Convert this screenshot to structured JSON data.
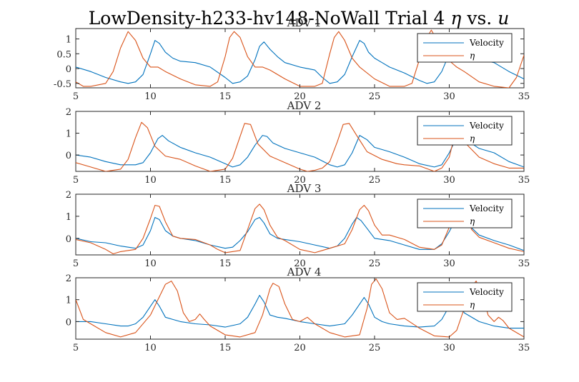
{
  "figure": {
    "title_parts": [
      "LowDensity-h233-hv148-NoWall Trial 4 ",
      "η",
      " vs. ",
      "u"
    ]
  },
  "chart_data": [
    {
      "type": "line",
      "title": "ADV 1",
      "xlim": [
        5,
        35
      ],
      "ylim": [
        -0.65,
        1.35
      ],
      "xticks": [
        5,
        10,
        15,
        20,
        25,
        30,
        35
      ],
      "xticklabels": [
        "5",
        "10",
        "15",
        "20",
        "25",
        "30",
        "35"
      ],
      "yticks": [
        -0.5,
        0,
        0.5,
        1
      ],
      "yticklabels": [
        "-0.5",
        "0",
        "0.5",
        "1"
      ],
      "grid": false,
      "legend_position": "top-right",
      "series": [
        {
          "name": "Velocity",
          "color": "#0072BD",
          "x": [
            5,
            6,
            7,
            8,
            8.5,
            9,
            9.5,
            10,
            10.3,
            10.6,
            11,
            11.5,
            12,
            13,
            14,
            15,
            15.5,
            16,
            16.5,
            17,
            17.3,
            17.6,
            18,
            18.5,
            19,
            20,
            21,
            21.5,
            22,
            22.5,
            23,
            23.5,
            24,
            24.3,
            24.6,
            25,
            25.5,
            26,
            27,
            28,
            28.5,
            29,
            29.5,
            30,
            30.5,
            31,
            32,
            33,
            34,
            35
          ],
          "y": [
            0.05,
            -0.1,
            -0.3,
            -0.45,
            -0.5,
            -0.45,
            -0.2,
            0.5,
            0.95,
            0.85,
            0.55,
            0.35,
            0.25,
            0.2,
            0.05,
            -0.3,
            -0.5,
            -0.45,
            -0.25,
            0.3,
            0.75,
            0.9,
            0.65,
            0.4,
            0.2,
            0.05,
            -0.05,
            -0.3,
            -0.5,
            -0.45,
            -0.2,
            0.4,
            0.95,
            0.85,
            0.55,
            0.35,
            0.2,
            0.05,
            -0.15,
            -0.4,
            -0.5,
            -0.45,
            -0.1,
            0.5,
            0.85,
            0.6,
            0.3,
            0.2,
            -0.1,
            -0.35
          ]
        },
        {
          "name": "η",
          "color": "#D95319",
          "x": [
            5,
            5.5,
            6,
            7,
            7.5,
            8,
            8.5,
            9,
            9.5,
            10,
            10.5,
            11,
            12,
            13,
            14,
            14.5,
            15,
            15.3,
            15.6,
            16,
            16.5,
            17,
            17.5,
            18,
            19,
            20,
            21,
            21.5,
            22,
            22.3,
            22.6,
            23,
            23.5,
            24,
            25,
            26,
            27,
            27.5,
            28,
            28.5,
            28.8,
            29.2,
            29.8,
            30.5,
            31,
            32,
            33,
            34,
            34.5,
            35
          ],
          "y": [
            -0.45,
            -0.6,
            -0.6,
            -0.5,
            -0.1,
            0.7,
            1.25,
            0.95,
            0.35,
            0.05,
            0.05,
            -0.1,
            -0.35,
            -0.55,
            -0.6,
            -0.45,
            0.4,
            1.05,
            1.25,
            1.05,
            0.4,
            0.05,
            0.05,
            -0.05,
            -0.35,
            -0.6,
            -0.6,
            -0.5,
            0.5,
            1.05,
            1.25,
            0.95,
            0.35,
            0.05,
            -0.35,
            -0.6,
            -0.6,
            -0.5,
            0.3,
            1.05,
            1.3,
            0.95,
            0.35,
            0.05,
            -0.1,
            -0.45,
            -0.6,
            -0.65,
            -0.3,
            0.45
          ]
        }
      ]
    },
    {
      "type": "line",
      "title": "ADV 2",
      "xlim": [
        5,
        35
      ],
      "ylim": [
        -0.75,
        2
      ],
      "xticks": [
        5,
        10,
        15,
        20,
        25,
        30,
        35
      ],
      "xticklabels": [
        "5",
        "10",
        "15",
        "20",
        "25",
        "30",
        "35"
      ],
      "yticks": [
        0,
        1,
        2
      ],
      "yticklabels": [
        "0",
        "1",
        "2"
      ],
      "grid": false,
      "legend_position": "top-right",
      "series": [
        {
          "name": "Velocity",
          "color": "#0072BD",
          "x": [
            5,
            6,
            7,
            8,
            9,
            9.5,
            10,
            10.5,
            10.8,
            11.2,
            12,
            13,
            14,
            15,
            15.5,
            16,
            16.5,
            17,
            17.5,
            17.8,
            18.2,
            19,
            20,
            21,
            22,
            22.5,
            23,
            23.5,
            24,
            24.5,
            25,
            26,
            27,
            28,
            29,
            29.5,
            30,
            30.5,
            31,
            32,
            33,
            34,
            35
          ],
          "y": [
            0,
            -0.1,
            -0.3,
            -0.45,
            -0.45,
            -0.35,
            0.1,
            0.75,
            0.9,
            0.65,
            0.35,
            0.1,
            -0.1,
            -0.4,
            -0.55,
            -0.45,
            -0.1,
            0.45,
            0.9,
            0.85,
            0.55,
            0.3,
            0.1,
            -0.1,
            -0.45,
            -0.55,
            -0.45,
            0.1,
            0.9,
            0.7,
            0.35,
            0.15,
            -0.1,
            -0.4,
            -0.55,
            -0.45,
            0.1,
            0.8,
            0.75,
            0.3,
            0.1,
            -0.3,
            -0.55
          ]
        },
        {
          "name": "η",
          "color": "#D95319",
          "x": [
            5,
            6,
            7,
            8,
            8.5,
            9,
            9.4,
            9.8,
            10.3,
            11,
            12,
            13,
            14,
            15,
            15.5,
            16,
            16.3,
            16.7,
            17.2,
            18,
            19,
            20,
            20.5,
            21,
            21.5,
            22,
            22.5,
            22.9,
            23.3,
            23.8,
            24.5,
            25.5,
            26.5,
            27,
            28,
            29,
            29.5,
            30,
            30.2,
            30.6,
            31,
            32,
            33,
            34,
            35
          ],
          "y": [
            -0.35,
            -0.55,
            -0.75,
            -0.65,
            -0.2,
            0.8,
            1.5,
            1.25,
            0.4,
            -0.05,
            -0.2,
            -0.5,
            -0.75,
            -0.65,
            -0.15,
            0.85,
            1.45,
            1.4,
            0.5,
            -0.05,
            -0.35,
            -0.65,
            -0.75,
            -0.7,
            -0.6,
            -0.3,
            0.6,
            1.4,
            1.45,
            0.9,
            0.15,
            -0.2,
            -0.4,
            -0.45,
            -0.5,
            -0.75,
            -0.6,
            -0.1,
            0.45,
            1.1,
            0.6,
            -0.1,
            -0.4,
            -0.6,
            -0.6
          ]
        }
      ]
    },
    {
      "type": "line",
      "title": "ADV 3",
      "xlim": [
        5,
        35
      ],
      "ylim": [
        -0.75,
        2
      ],
      "xticks": [
        5,
        10,
        15,
        20,
        25,
        30,
        35
      ],
      "xticklabels": [
        "5",
        "10",
        "15",
        "20",
        "25",
        "30",
        "35"
      ],
      "yticks": [
        0,
        1,
        2
      ],
      "yticklabels": [
        "0",
        "1",
        "2"
      ],
      "grid": false,
      "legend_position": "top-right",
      "series": [
        {
          "name": "Velocity",
          "color": "#0072BD",
          "x": [
            5,
            6,
            7,
            8,
            9,
            9.5,
            10,
            10.3,
            10.6,
            11,
            11.5,
            12,
            13,
            14,
            15,
            15.5,
            16,
            16.5,
            17,
            17.3,
            17.6,
            18,
            18.5,
            19,
            20,
            21,
            22,
            22.5,
            23,
            23.5,
            23.8,
            24.1,
            24.5,
            25,
            26,
            27,
            28,
            29,
            29.5,
            30,
            30.5,
            31,
            32,
            33,
            34,
            35
          ],
          "y": [
            0,
            -0.15,
            -0.2,
            -0.35,
            -0.45,
            -0.3,
            0.35,
            0.95,
            0.85,
            0.35,
            0.1,
            0,
            -0.1,
            -0.3,
            -0.45,
            -0.4,
            -0.1,
            0.3,
            0.85,
            0.95,
            0.7,
            0.2,
            0,
            -0.05,
            -0.15,
            -0.3,
            -0.45,
            -0.35,
            0,
            0.65,
            0.95,
            0.8,
            0.45,
            0,
            -0.1,
            -0.3,
            -0.5,
            -0.5,
            -0.25,
            0.3,
            0.95,
            0.8,
            0.15,
            -0.1,
            -0.3,
            -0.55
          ]
        },
        {
          "name": "η",
          "color": "#D95319",
          "x": [
            5,
            6,
            7,
            7.5,
            8,
            9,
            9.5,
            10,
            10.3,
            10.6,
            11,
            11.5,
            12,
            13,
            14,
            14.5,
            15,
            16,
            16.5,
            17,
            17.3,
            17.6,
            18,
            18.5,
            19,
            20,
            21,
            21.5,
            22,
            23,
            23.5,
            24,
            24.3,
            24.6,
            25,
            25.5,
            26,
            27,
            28,
            29,
            29.5,
            30,
            30.5,
            31,
            31.5,
            32,
            33,
            34,
            35
          ],
          "y": [
            -0.05,
            -0.2,
            -0.5,
            -0.7,
            -0.6,
            -0.5,
            0,
            0.9,
            1.5,
            1.45,
            0.75,
            0.1,
            0,
            -0.05,
            -0.3,
            -0.5,
            -0.65,
            -0.55,
            0.4,
            1.35,
            1.55,
            1.3,
            0.6,
            0.05,
            -0.1,
            -0.5,
            -0.65,
            -0.55,
            -0.45,
            -0.25,
            0.4,
            1.3,
            1.5,
            1.25,
            0.6,
            0.15,
            0.15,
            -0.05,
            -0.4,
            -0.5,
            -0.3,
            0.5,
            1.4,
            1.2,
            0.4,
            0.05,
            -0.2,
            -0.45,
            -0.6
          ]
        }
      ]
    },
    {
      "type": "line",
      "title": "ADV 4",
      "xlim": [
        5,
        35
      ],
      "ylim": [
        -0.8,
        2
      ],
      "xticks": [
        5,
        10,
        15,
        20,
        25,
        30,
        35
      ],
      "xticklabels": [
        "5",
        "10",
        "15",
        "20",
        "25",
        "30",
        "35"
      ],
      "yticks": [
        0,
        1,
        2
      ],
      "yticklabels": [
        "0",
        "1",
        "2"
      ],
      "grid": false,
      "legend_position": "top-right",
      "series": [
        {
          "name": "Velocity",
          "color": "#0072BD",
          "x": [
            5,
            6,
            7,
            8,
            8.5,
            9,
            9.5,
            10,
            10.3,
            10.6,
            11,
            11.5,
            12,
            13,
            14,
            15,
            16,
            16.5,
            17,
            17.3,
            17.6,
            18,
            18.5,
            19,
            20,
            21,
            22,
            23,
            23.5,
            24,
            24.3,
            24.6,
            25,
            25.5,
            26,
            27,
            28,
            29,
            29.5,
            30,
            30.5,
            31,
            32,
            33,
            34,
            35
          ],
          "y": [
            0,
            0,
            -0.1,
            -0.2,
            -0.2,
            -0.1,
            0.2,
            0.7,
            1.0,
            0.7,
            0.2,
            0.1,
            0,
            -0.1,
            -0.15,
            -0.25,
            -0.1,
            0.2,
            0.8,
            1.2,
            0.9,
            0.3,
            0.2,
            0.15,
            0,
            -0.1,
            -0.2,
            -0.1,
            0.3,
            0.8,
            1.1,
            0.8,
            0.2,
            0,
            -0.1,
            -0.2,
            -0.25,
            -0.2,
            0.1,
            0.7,
            0.95,
            0.4,
            0,
            -0.2,
            -0.3,
            -0.3
          ]
        },
        {
          "name": "η",
          "color": "#D95319",
          "x": [
            5,
            5.5,
            6,
            7,
            8,
            9,
            10,
            10.5,
            11,
            11.4,
            11.8,
            12.2,
            12.6,
            13,
            13.3,
            13.6,
            14,
            15,
            16,
            17,
            17.5,
            18,
            18.2,
            18.6,
            19,
            19.5,
            20,
            20.5,
            21,
            22,
            23,
            24,
            24.5,
            24.8,
            25.1,
            25.5,
            26,
            26.5,
            27,
            28,
            29,
            30,
            30.5,
            31,
            31.5,
            31.8,
            32.2,
            32.6,
            33,
            33.3,
            33.6,
            34,
            35
          ],
          "y": [
            1.0,
            0.1,
            -0.1,
            -0.5,
            -0.7,
            -0.5,
            0.3,
            1.0,
            1.7,
            1.85,
            1.4,
            0.4,
            0,
            0.1,
            0.35,
            0.1,
            -0.2,
            -0.6,
            -0.7,
            -0.5,
            0.3,
            1.5,
            1.75,
            1.6,
            0.8,
            0.1,
            0,
            0.2,
            -0.1,
            -0.5,
            -0.7,
            -0.6,
            0.6,
            1.7,
            1.95,
            1.5,
            0.4,
            0.1,
            0.15,
            -0.3,
            -0.65,
            -0.7,
            -0.4,
            0.6,
            1.6,
            1.85,
            1.3,
            0.3,
            0,
            0.2,
            0.05,
            -0.3,
            -0.7
          ]
        }
      ]
    }
  ]
}
